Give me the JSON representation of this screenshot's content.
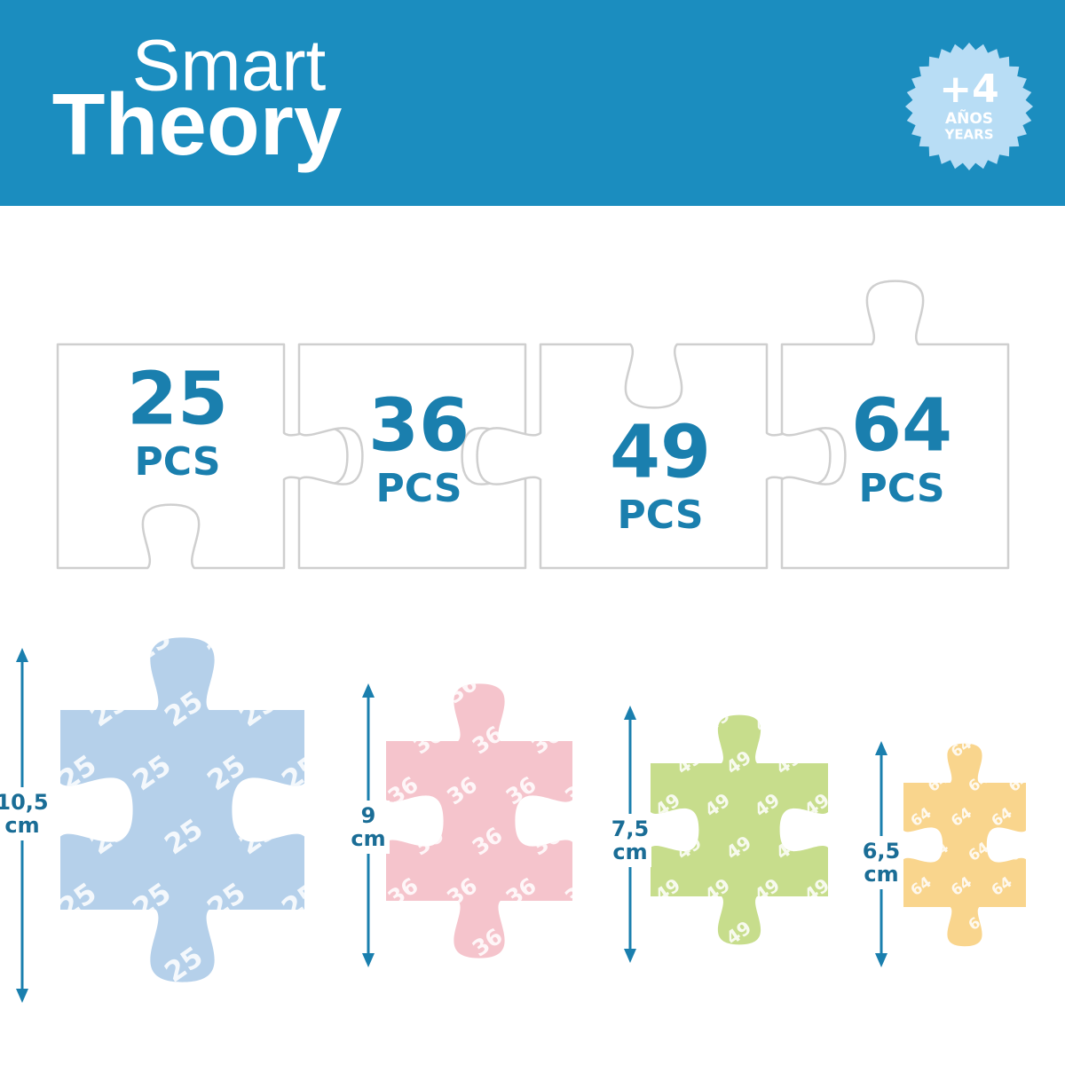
{
  "header": {
    "brand_line1": "Smart",
    "brand_line2": "Theory",
    "badge": {
      "age": "+4",
      "label_es": "AÑOS",
      "label_en": "YEARS"
    }
  },
  "puzzles": [
    {
      "count": "25",
      "unit": "PCS"
    },
    {
      "count": "36",
      "unit": "PCS"
    },
    {
      "count": "49",
      "unit": "PCS"
    },
    {
      "count": "64",
      "unit": "PCS"
    }
  ],
  "pieces": [
    {
      "size": "10,5",
      "unit": "cm"
    },
    {
      "size": "9",
      "unit": "cm"
    },
    {
      "size": "7,5",
      "unit": "cm"
    },
    {
      "size": "6,5",
      "unit": "cm"
    }
  ]
}
